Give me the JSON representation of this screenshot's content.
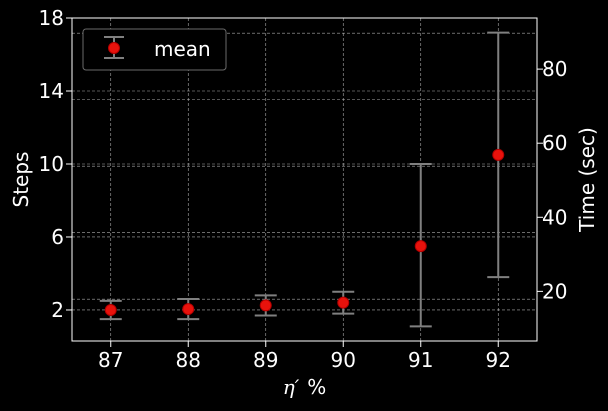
{
  "chart_data": {
    "type": "scatter",
    "x": [
      87,
      88,
      89,
      90,
      91,
      92
    ],
    "x_tick_labels": [
      "87",
      "88",
      "89",
      "90",
      "91",
      "92"
    ],
    "xlim": [
      86.5,
      92.5
    ],
    "xlabel_symbol": "η′",
    "xlabel_unit": "%",
    "ylabel": "Steps",
    "ylim": [
      0.3,
      18
    ],
    "y_ticks": [
      2,
      6,
      10,
      14,
      18
    ],
    "y_tick_labels": [
      "2",
      "6",
      "10",
      "14",
      "18"
    ],
    "y2label": "Time (sec)",
    "y2lim": [
      6.6,
      93.8
    ],
    "y2_ticks": [
      20,
      40,
      60,
      80
    ],
    "y2_tick_labels": [
      "20",
      "40",
      "60",
      "80"
    ],
    "series": [
      {
        "name": "mean",
        "values": [
          2.0,
          2.05,
          2.25,
          2.4,
          5.5,
          10.5
        ],
        "err_low": [
          1.5,
          1.5,
          1.7,
          1.8,
          1.1,
          3.8
        ],
        "err_high": [
          2.5,
          2.6,
          2.8,
          3.0,
          10.0,
          17.2
        ]
      }
    ],
    "y2_gridlines": [
      17.9,
      35.9,
      53.8,
      71.8,
      89.7
    ],
    "grid": true,
    "legend_position": "top-left",
    "colors": {
      "background": "#000000",
      "marker": "#e8120c",
      "marker_edge": "#b40000",
      "errorbar": "#808080",
      "grid": "#cccccc",
      "text": "#ffffff"
    }
  }
}
